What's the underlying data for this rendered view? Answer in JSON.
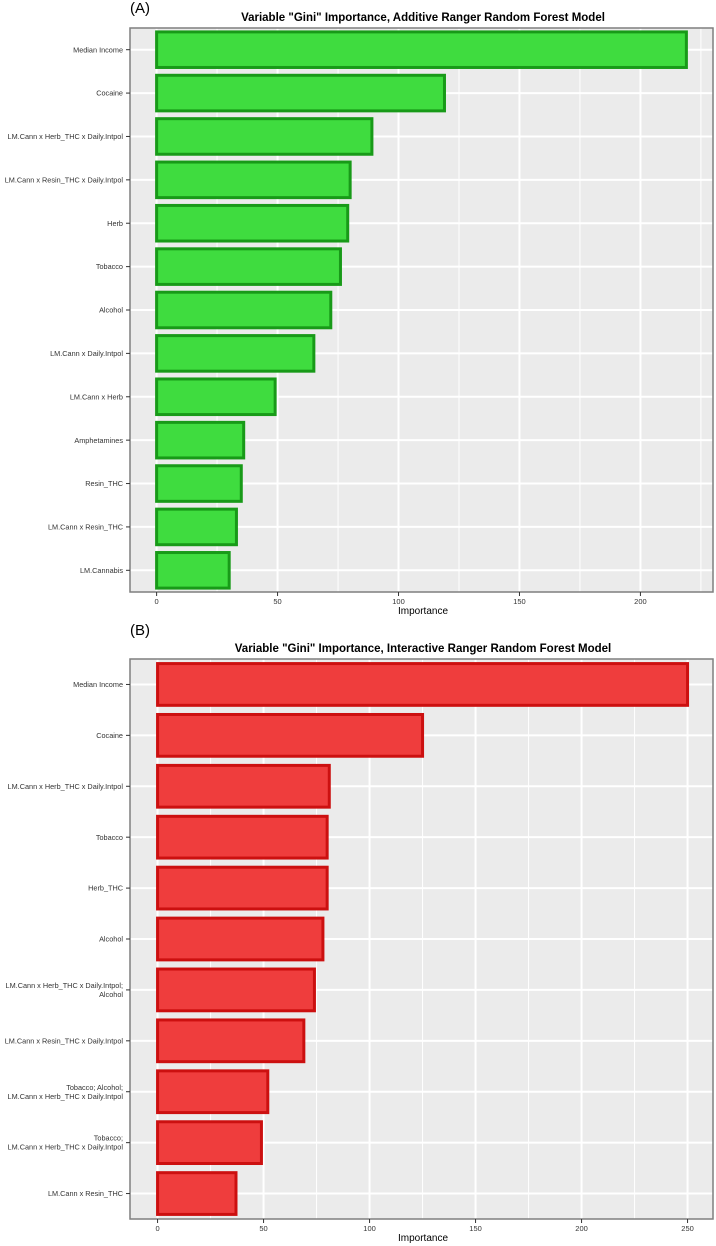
{
  "chart_data": [
    {
      "id": "A",
      "type": "bar",
      "orientation": "horizontal",
      "panel_label": "(A)",
      "title": "Variable \"Gini\" Importance, Additive Ranger Random Forest Model",
      "xlabel": "Importance",
      "ylabel": "",
      "categories": [
        "Median Income",
        "Cocaine",
        "LM.Cann x Herb_THC x Daily.Intpol",
        "LM.Cann x Resin_THC x Daily.Intpol",
        "Herb",
        "Tobacco",
        "Alcohol",
        "LM.Cann x Daily.Intpol",
        "LM.Cann x Herb",
        "Amphetamines",
        "Resin_THC",
        "LM.Cann x Resin_THC",
        "LM.Cannabis"
      ],
      "values": [
        219,
        119,
        89,
        80,
        79,
        76,
        72,
        65,
        49,
        36,
        35,
        33,
        30
      ],
      "xlim": [
        -11,
        230
      ],
      "xticks": [
        0,
        50,
        100,
        150,
        200
      ],
      "grid": true,
      "legend": "none",
      "fill_color": "#3fdc3f",
      "edge_color": "#189a18"
    },
    {
      "id": "B",
      "type": "bar",
      "orientation": "horizontal",
      "panel_label": "(B)",
      "title": "Variable \"Gini\" Importance, Interactive Ranger Random Forest Model",
      "xlabel": "Importance",
      "ylabel": "",
      "categories": [
        "Median Income",
        "Cocaine",
        "LM.Cann x Herb_THC x Daily.Intpol",
        "Tobacco",
        "Herb_THC",
        "Alcohol",
        "LM.Cann x Herb_THC x Daily.Intpol;\nAlcohol",
        "LM.Cann x Resin_THC x Daily.Intpol",
        "Tobacco; Alcohol;\nLM.Cann x Herb_THC x Daily.Intpol",
        "Tobacco;\nLM.Cann x Herb_THC x Daily.Intpol",
        "LM.Cann x Resin_THC"
      ],
      "values": [
        250,
        125,
        81,
        80,
        80,
        78,
        74,
        69,
        52,
        49,
        37
      ],
      "xlim": [
        -13,
        262
      ],
      "xticks": [
        0,
        50,
        100,
        150,
        200,
        250
      ],
      "grid": true,
      "legend": "none",
      "fill_color": "#ef3d3d",
      "edge_color": "#cc1010"
    }
  ]
}
